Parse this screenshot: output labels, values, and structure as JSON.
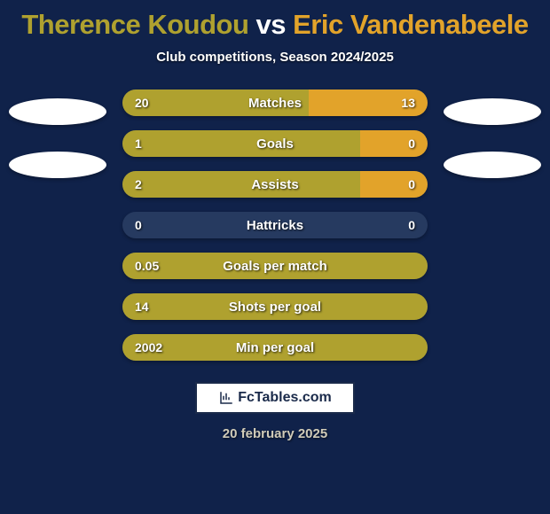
{
  "background_color": "#10224a",
  "title": {
    "player1": "Therence Koudou",
    "vs": "vs",
    "player2": "Eric Vandenabeele",
    "p1_color": "#afa12f",
    "vs_color": "#ffffff",
    "p2_color": "#e2a32a"
  },
  "subtitle": "Club competitions, Season 2024/2025",
  "colors": {
    "p1": "#afa12f",
    "p2": "#e2a32a",
    "track": "#263a60"
  },
  "stats": [
    {
      "label": "Matches",
      "left_val": "20",
      "right_val": "13",
      "left_pct": 61,
      "right_pct": 39
    },
    {
      "label": "Goals",
      "left_val": "1",
      "right_val": "0",
      "left_pct": 78,
      "right_pct": 22
    },
    {
      "label": "Assists",
      "left_val": "2",
      "right_val": "0",
      "left_pct": 78,
      "right_pct": 22
    },
    {
      "label": "Hattricks",
      "left_val": "0",
      "right_val": "0",
      "left_pct": 0,
      "right_pct": 0
    },
    {
      "label": "Goals per match",
      "left_val": "0.05",
      "right_val": "",
      "left_pct": 100,
      "right_pct": 0
    },
    {
      "label": "Shots per goal",
      "left_val": "14",
      "right_val": "",
      "left_pct": 100,
      "right_pct": 0
    },
    {
      "label": "Min per goal",
      "left_val": "2002",
      "right_val": "",
      "left_pct": 100,
      "right_pct": 0
    }
  ],
  "footer": {
    "site": "FcTables.com",
    "date": "20 february 2025",
    "date_color": "#d0cbb8"
  }
}
